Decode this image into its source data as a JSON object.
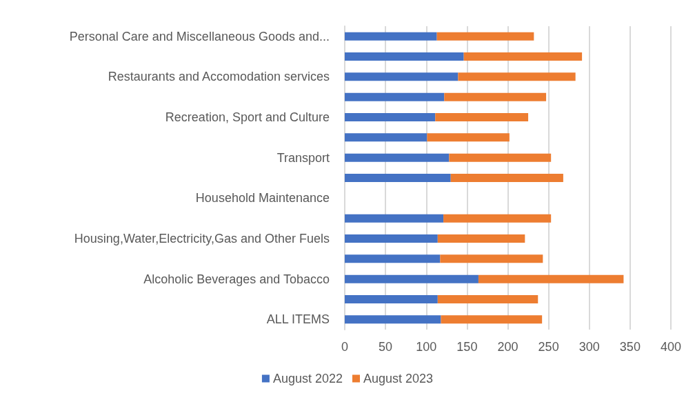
{
  "chart_data": {
    "type": "bar",
    "orientation": "horizontal",
    "stacked": true,
    "categories": [
      "Personal Care and Miscellaneous Goods and...",
      null,
      "Restaurants and Accomodation services",
      null,
      "Recreation, Sport and Culture",
      null,
      "Transport",
      null,
      "Household Maintenance",
      null,
      "Housing,Water,Electricity,Gas and Other Fuels",
      null,
      "Alcoholic Beverages and Tobacco",
      null,
      "ALL ITEMS"
    ],
    "series": [
      {
        "name": "August 2022",
        "color": "#4472c4",
        "values": [
          113,
          146,
          139,
          122,
          111,
          101,
          128,
          130,
          null,
          121,
          114,
          117,
          164,
          114,
          118
        ]
      },
      {
        "name": "August 2023",
        "color": "#ed7d31",
        "values": [
          119,
          145,
          144,
          125,
          114,
          101,
          125,
          138,
          null,
          132,
          107,
          126,
          178,
          123,
          124
        ]
      }
    ],
    "xlim": [
      0,
      400
    ],
    "xticks": [
      0,
      50,
      100,
      150,
      200,
      250,
      300,
      350,
      400
    ],
    "grid": "x",
    "legend": "bottom"
  }
}
